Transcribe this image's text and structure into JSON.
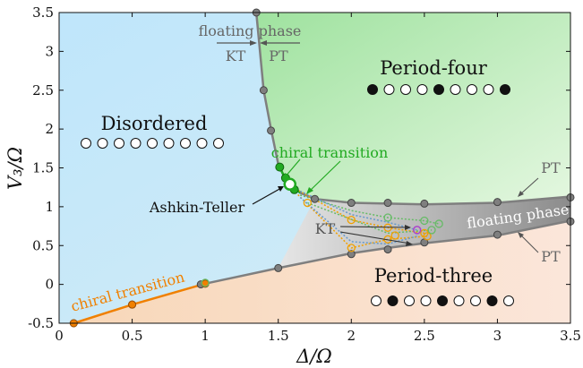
{
  "chart_data": {
    "type": "scatter",
    "xlabel": "Δ/Ω",
    "ylabel": "V₃/Ω",
    "xlim": [
      0,
      3.5
    ],
    "ylim": [
      -0.5,
      3.5
    ],
    "x_ticks": [
      "0",
      "0.5",
      "1",
      "1.5",
      "2",
      "2.5",
      "3",
      "3.5"
    ],
    "y_ticks": [
      "-0.5",
      "0",
      "0.5",
      "1",
      "1.5",
      "2",
      "2.5",
      "3",
      "3.5"
    ],
    "colors": {
      "disordered": "#c8e8f8",
      "period_four": "#c2ecc2",
      "period_three": "#f8dcc4",
      "boundary": "#7f7f7f",
      "orange": "#f08000",
      "green": "#22aa22",
      "purple": "#aa44cc",
      "floating": "#9a9a9a"
    },
    "regions": {
      "disordered": "Disordered",
      "period_four": "Period-four",
      "period_three": "Period-three",
      "floating": "floating phase"
    },
    "patterns": {
      "disordered": [
        0,
        0,
        0,
        0,
        0,
        0,
        0,
        0,
        0
      ],
      "period_four": [
        1,
        0,
        0,
        0,
        1,
        0,
        0,
        0,
        1
      ],
      "period_three": [
        0,
        1,
        0,
        0,
        1,
        0,
        0,
        1,
        0
      ]
    },
    "annotations": {
      "floating_top": "floating phase",
      "kt_top": "KT",
      "pt_top": "PT",
      "chiral_green": "chiral transition",
      "chiral_orange": "chiral transition",
      "ashkin_teller": "Ashkin-Teller",
      "kt_right": "KT",
      "pt_right_upper": "PT",
      "pt_right_lower": "PT"
    },
    "series": [
      {
        "role": "boundary_period_three",
        "points": [
          [
            0.1,
            -0.5
          ],
          [
            0.5,
            -0.26
          ],
          [
            1.0,
            0.01
          ],
          [
            1.5,
            0.21
          ],
          [
            2.0,
            0.4
          ],
          [
            2.25,
            0.47
          ],
          [
            2.5,
            0.53
          ],
          [
            3.0,
            0.63
          ],
          [
            3.5,
            0.82
          ]
        ],
        "markers": [
          [
            0.1,
            -0.5
          ],
          [
            0.5,
            -0.26
          ],
          [
            0.97,
            0.0
          ],
          [
            1.0,
            0.01
          ],
          [
            1.5,
            0.21
          ],
          [
            2.0,
            0.39
          ],
          [
            2.25,
            0.45
          ],
          [
            2.5,
            0.54
          ],
          [
            3.0,
            0.64
          ],
          [
            3.5,
            0.81
          ]
        ]
      },
      {
        "role": "boundary_period_four",
        "points": [
          [
            1.35,
            3.5
          ],
          [
            1.4,
            2.5
          ],
          [
            1.45,
            2.0
          ],
          [
            1.5,
            1.55
          ],
          [
            1.55,
            1.35
          ],
          [
            1.65,
            1.18
          ],
          [
            1.75,
            1.1
          ],
          [
            2.0,
            1.05
          ],
          [
            2.25,
            1.04
          ],
          [
            2.5,
            1.03
          ],
          [
            3.0,
            1.05
          ],
          [
            3.5,
            1.13
          ]
        ],
        "markers": [
          [
            1.35,
            3.5
          ],
          [
            1.4,
            2.5
          ],
          [
            1.45,
            1.98
          ],
          [
            1.75,
            1.1
          ],
          [
            2.0,
            1.05
          ],
          [
            2.25,
            1.05
          ],
          [
            2.5,
            1.04
          ],
          [
            3.0,
            1.06
          ],
          [
            3.5,
            1.12
          ]
        ]
      },
      {
        "role": "chiral_green",
        "markers": [
          [
            1.51,
            1.51
          ],
          [
            1.55,
            1.37
          ],
          [
            1.61,
            1.22
          ]
        ]
      },
      {
        "role": "ashkin_teller",
        "markers": [
          [
            1.58,
            1.29
          ]
        ]
      },
      {
        "role": "kt_orange_open",
        "markers": [
          [
            1.7,
            1.05
          ],
          [
            2.0,
            0.83
          ],
          [
            2.0,
            0.47
          ],
          [
            2.25,
            0.73
          ],
          [
            2.25,
            0.58
          ],
          [
            2.3,
            0.63
          ],
          [
            2.5,
            0.66
          ],
          [
            2.52,
            0.62
          ]
        ]
      },
      {
        "role": "kt_green_open",
        "markers": [
          [
            1.0,
            0.02
          ],
          [
            2.25,
            0.86
          ],
          [
            2.5,
            0.82
          ],
          [
            2.6,
            0.78
          ],
          [
            2.55,
            0.7
          ]
        ]
      },
      {
        "role": "kt_purple_open",
        "markers": [
          [
            2.45,
            0.7
          ]
        ]
      }
    ]
  }
}
